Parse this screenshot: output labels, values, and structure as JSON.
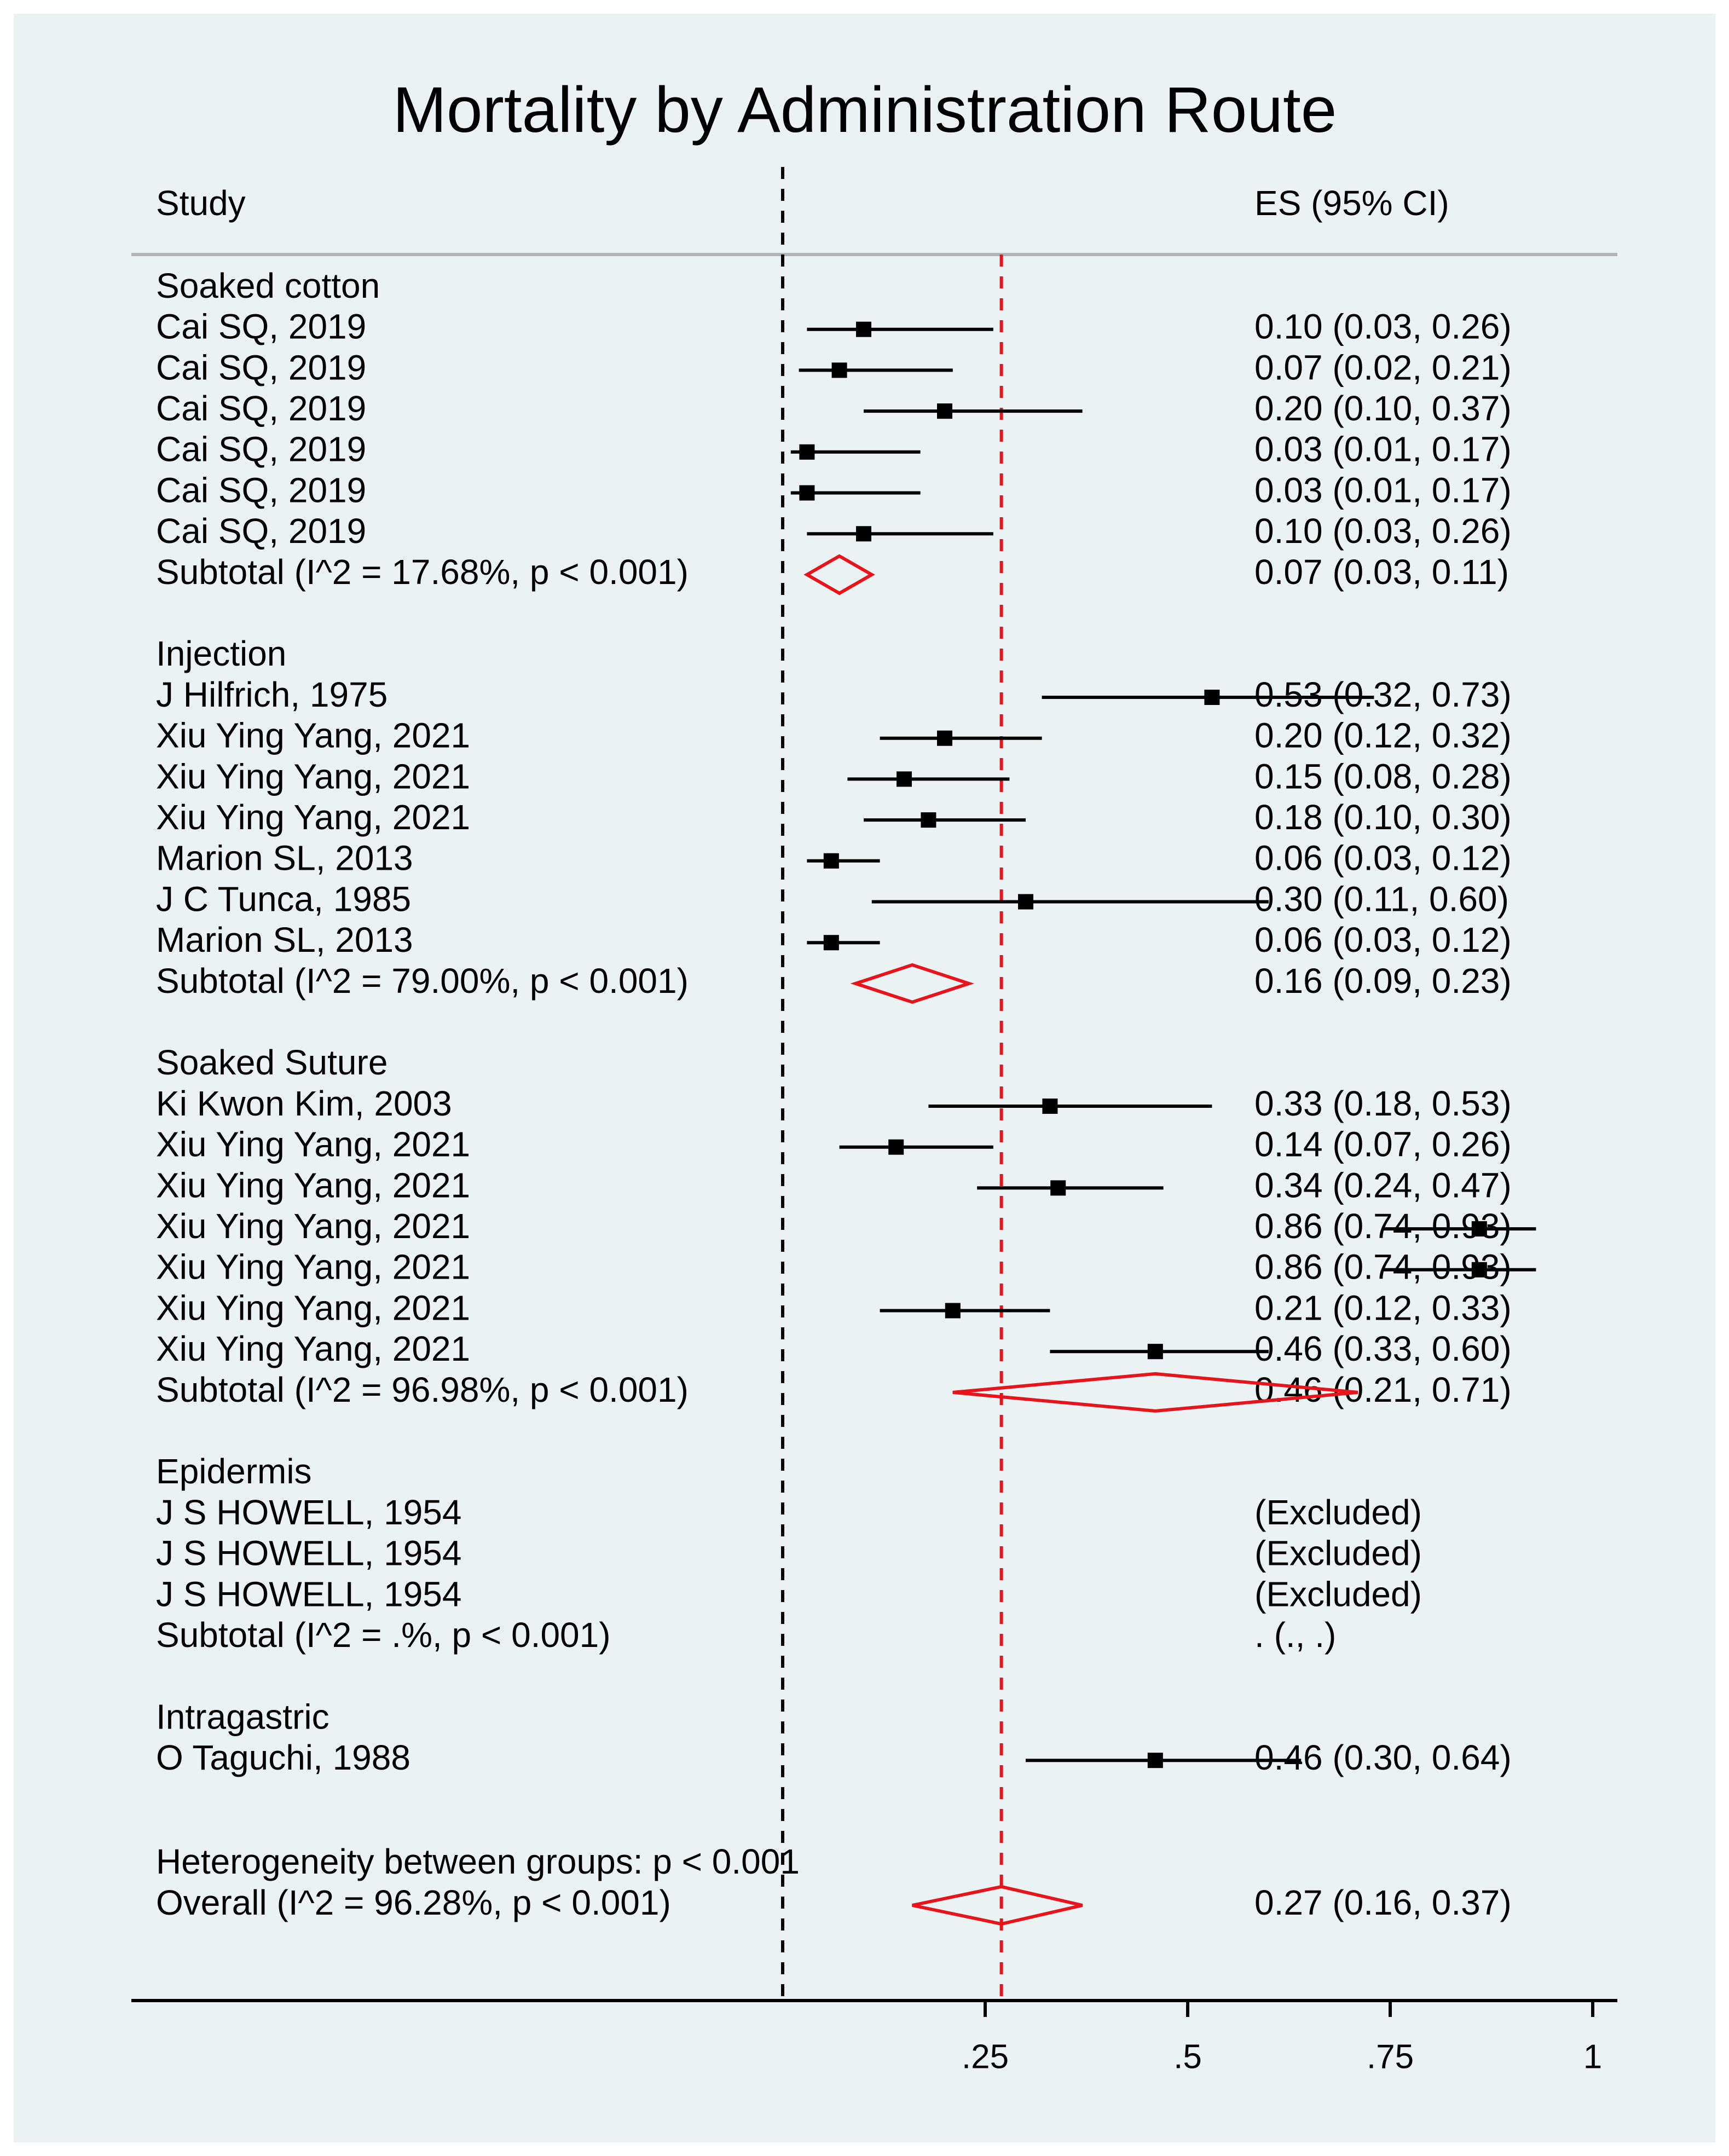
{
  "chart_data": {
    "type": "forest",
    "title": "Mortality by Administration Route",
    "column_headers": {
      "study": "Study",
      "estimate": "ES (95% CI)"
    },
    "x_axis": {
      "range": [
        0,
        1
      ],
      "ticks": [
        0.25,
        0.5,
        0.75,
        1
      ],
      "tick_labels": [
        ".25",
        ".5",
        ".75",
        "1"
      ],
      "null_line": 0,
      "overall_line": 0.27
    },
    "groups": [
      {
        "name": "Soaked cotton",
        "studies": [
          {
            "label": "Cai SQ, 2019",
            "es": 0.1,
            "lo": 0.03,
            "hi": 0.26,
            "es_text": "0.10 (0.03, 0.26)"
          },
          {
            "label": "Cai SQ, 2019",
            "es": 0.07,
            "lo": 0.02,
            "hi": 0.21,
            "es_text": "0.07 (0.02, 0.21)"
          },
          {
            "label": "Cai SQ, 2019",
            "es": 0.2,
            "lo": 0.1,
            "hi": 0.37,
            "es_text": "0.20 (0.10, 0.37)"
          },
          {
            "label": "Cai SQ, 2019",
            "es": 0.03,
            "lo": 0.01,
            "hi": 0.17,
            "es_text": "0.03 (0.01, 0.17)"
          },
          {
            "label": "Cai SQ, 2019",
            "es": 0.03,
            "lo": 0.01,
            "hi": 0.17,
            "es_text": "0.03 (0.01, 0.17)"
          },
          {
            "label": "Cai SQ, 2019",
            "es": 0.1,
            "lo": 0.03,
            "hi": 0.26,
            "es_text": "0.10 (0.03, 0.26)"
          }
        ],
        "subtotal": {
          "label": "Subtotal  (I^2 = 17.68%, p < 0.001)",
          "es": 0.07,
          "lo": 0.03,
          "hi": 0.11,
          "es_text": "0.07 (0.03, 0.11)"
        }
      },
      {
        "name": "Injection",
        "studies": [
          {
            "label": "J Hilfrich, 1975",
            "es": 0.53,
            "lo": 0.32,
            "hi": 0.73,
            "es_text": "0.53 (0.32, 0.73)"
          },
          {
            "label": "Xiu Ying Yang, 2021",
            "es": 0.2,
            "lo": 0.12,
            "hi": 0.32,
            "es_text": "0.20 (0.12, 0.32)"
          },
          {
            "label": "Xiu Ying Yang, 2021",
            "es": 0.15,
            "lo": 0.08,
            "hi": 0.28,
            "es_text": "0.15 (0.08, 0.28)"
          },
          {
            "label": "Xiu Ying Yang, 2021",
            "es": 0.18,
            "lo": 0.1,
            "hi": 0.3,
            "es_text": "0.18 (0.10, 0.30)"
          },
          {
            "label": "Marion SL, 2013",
            "es": 0.06,
            "lo": 0.03,
            "hi": 0.12,
            "es_text": "0.06 (0.03, 0.12)"
          },
          {
            "label": "J C Tunca, 1985",
            "es": 0.3,
            "lo": 0.11,
            "hi": 0.6,
            "es_text": "0.30 (0.11, 0.60)"
          },
          {
            "label": "Marion SL, 2013",
            "es": 0.06,
            "lo": 0.03,
            "hi": 0.12,
            "es_text": "0.06 (0.03, 0.12)"
          }
        ],
        "subtotal": {
          "label": "Subtotal  (I^2 = 79.00%, p < 0.001)",
          "es": 0.16,
          "lo": 0.09,
          "hi": 0.23,
          "es_text": "0.16 (0.09, 0.23)"
        }
      },
      {
        "name": "Soaked Suture",
        "studies": [
          {
            "label": "Ki Kwon Kim, 2003",
            "es": 0.33,
            "lo": 0.18,
            "hi": 0.53,
            "es_text": "0.33 (0.18, 0.53)"
          },
          {
            "label": "Xiu Ying Yang, 2021",
            "es": 0.14,
            "lo": 0.07,
            "hi": 0.26,
            "es_text": "0.14 (0.07, 0.26)"
          },
          {
            "label": "Xiu Ying Yang, 2021",
            "es": 0.34,
            "lo": 0.24,
            "hi": 0.47,
            "es_text": "0.34 (0.24, 0.47)"
          },
          {
            "label": "Xiu Ying Yang, 2021",
            "es": 0.86,
            "lo": 0.74,
            "hi": 0.93,
            "es_text": "0.86 (0.74, 0.93)"
          },
          {
            "label": "Xiu Ying Yang, 2021",
            "es": 0.86,
            "lo": 0.74,
            "hi": 0.93,
            "es_text": "0.86 (0.74, 0.93)"
          },
          {
            "label": "Xiu Ying Yang, 2021",
            "es": 0.21,
            "lo": 0.12,
            "hi": 0.33,
            "es_text": "0.21 (0.12, 0.33)"
          },
          {
            "label": "Xiu Ying Yang, 2021",
            "es": 0.46,
            "lo": 0.33,
            "hi": 0.6,
            "es_text": "0.46 (0.33, 0.60)"
          }
        ],
        "subtotal": {
          "label": "Subtotal  (I^2 = 96.98%, p < 0.001)",
          "es": 0.46,
          "lo": 0.21,
          "hi": 0.71,
          "es_text": "0.46 (0.21, 0.71)"
        }
      },
      {
        "name": "Epidermis",
        "studies": [
          {
            "label": "J S HOWELL, 1954",
            "es": null,
            "lo": null,
            "hi": null,
            "es_text": "(Excluded)"
          },
          {
            "label": "J S HOWELL, 1954",
            "es": null,
            "lo": null,
            "hi": null,
            "es_text": "(Excluded)"
          },
          {
            "label": "J S HOWELL, 1954",
            "es": null,
            "lo": null,
            "hi": null,
            "es_text": "(Excluded)"
          }
        ],
        "subtotal": {
          "label": "Subtotal  (I^2 = .%, p < 0.001)",
          "es": null,
          "lo": null,
          "hi": null,
          "es_text": ". (., .)"
        }
      },
      {
        "name": "Intragastric",
        "studies": [
          {
            "label": "O Taguchi, 1988",
            "es": 0.46,
            "lo": 0.3,
            "hi": 0.64,
            "es_text": "0.46 (0.30, 0.64)"
          }
        ],
        "subtotal": null
      }
    ],
    "heterogeneity": "Heterogeneity between groups: p < 0.001",
    "overall": {
      "label": "Overall  (I^2 = 96.28%, p < 0.001)",
      "es": 0.27,
      "lo": 0.16,
      "hi": 0.37,
      "es_text": "0.27 (0.16, 0.37)"
    },
    "colors": {
      "background": "#eaf2f3",
      "diamond": "#e8141c",
      "overall_line": "#e8141c",
      "marker": "#000000",
      "rule": "#b0b4b5"
    }
  }
}
